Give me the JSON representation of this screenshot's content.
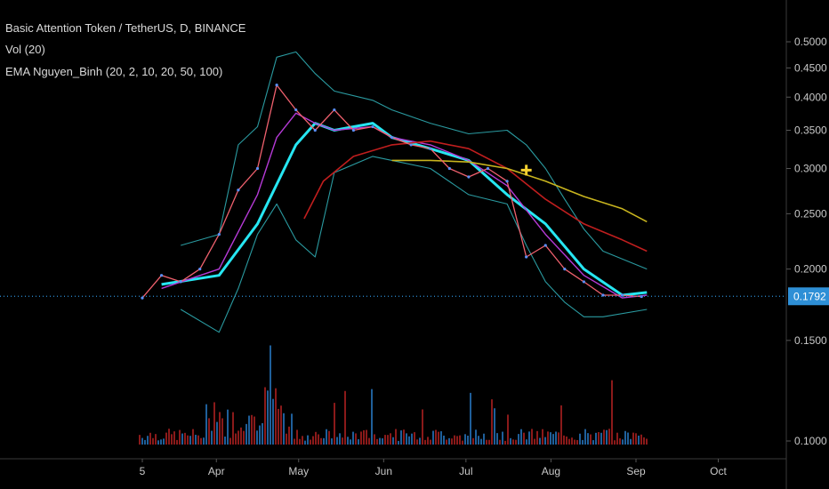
{
  "legend": {
    "title": "Basic Attention Token / TetherUS, D, BINANCE",
    "vol": "Vol (20)",
    "ema": "EMA Nguyen_Binh (20, 2, 10, 20, 50, 100)"
  },
  "colors": {
    "background": "#000000",
    "up_candle": "#5b8ff9",
    "down_candle": "#f0616e",
    "vol_up": "#1f5f9a",
    "vol_down": "#8b1a1a",
    "ema_fast": "#26e6f2",
    "ema_mid": "#b53ad6",
    "ema_slow": "#c01e1e",
    "ema_long": "#c8b41e",
    "bollinger": "#2a9aa0",
    "last_price_line": "#2e8fd6",
    "marker": "#f5d130"
  },
  "chart_data": {
    "type": "line",
    "y_scale": "log",
    "ylim": [
      0.095,
      0.52
    ],
    "yticks": [
      "0.1000",
      "0.1500",
      "0.2000",
      "0.2500",
      "0.3000",
      "0.3500",
      "0.4000",
      "0.4500",
      "0.5000"
    ],
    "x_labels": [
      "5",
      "Apr",
      "May",
      "Jun",
      "Jul",
      "Aug",
      "Sep",
      "Oct"
    ],
    "last_price": "0.1792",
    "series": [
      {
        "key": "price",
        "x": [
          "Mar 5",
          "Mar 12",
          "Mar 19",
          "Mar 26",
          "Apr 2",
          "Apr 9",
          "Apr 16",
          "Apr 23",
          "Apr 30",
          "May 7",
          "May 14",
          "May 21",
          "May 28",
          "Jun 4",
          "Jun 11",
          "Jun 18",
          "Jun 25",
          "Jul 2",
          "Jul 9",
          "Jul 16",
          "Jul 23",
          "Jul 30",
          "Aug 6",
          "Aug 13",
          "Aug 20",
          "Aug 27",
          "Sep 3"
        ],
        "values": [
          0.178,
          0.195,
          0.19,
          0.2,
          0.23,
          0.275,
          0.3,
          0.42,
          0.38,
          0.35,
          0.38,
          0.35,
          0.355,
          0.34,
          0.33,
          0.325,
          0.3,
          0.29,
          0.3,
          0.285,
          0.21,
          0.22,
          0.2,
          0.19,
          0.18,
          0.18,
          0.179
        ]
      },
      {
        "key": "ema_fast",
        "x": [
          "Mar 12",
          "Apr 2",
          "Apr 16",
          "Apr 30",
          "May 7",
          "May 14",
          "May 28",
          "Jun 4",
          "Jun 18",
          "Jul 2",
          "Jul 16",
          "Jul 30",
          "Aug 13",
          "Aug 27",
          "Sep 5"
        ],
        "values": [
          0.188,
          0.195,
          0.24,
          0.33,
          0.36,
          0.35,
          0.36,
          0.34,
          0.325,
          0.31,
          0.27,
          0.24,
          0.2,
          0.18,
          0.182
        ]
      },
      {
        "key": "ema_mid",
        "x": [
          "Mar 12",
          "Apr 2",
          "Apr 16",
          "Apr 23",
          "Apr 30",
          "May 7",
          "May 14",
          "May 28",
          "Jun 4",
          "Jun 18",
          "Jul 2",
          "Jul 16",
          "Jul 30",
          "Aug 13",
          "Aug 27",
          "Sep 5"
        ],
        "values": [
          0.185,
          0.2,
          0.27,
          0.34,
          0.375,
          0.36,
          0.35,
          0.355,
          0.34,
          0.33,
          0.31,
          0.28,
          0.23,
          0.195,
          0.178,
          0.18
        ]
      },
      {
        "key": "ema_slow",
        "x": [
          "May 3",
          "May 10",
          "May 21",
          "Jun 4",
          "Jun 18",
          "Jul 2",
          "Jul 16",
          "Jul 30",
          "Aug 13",
          "Aug 27",
          "Sep 5"
        ],
        "values": [
          0.245,
          0.285,
          0.315,
          0.33,
          0.335,
          0.325,
          0.3,
          0.265,
          0.24,
          0.225,
          0.215
        ]
      },
      {
        "key": "ema_long",
        "x": [
          "Jun 4",
          "Jun 18",
          "Jul 2",
          "Jul 16",
          "Jul 30",
          "Aug 13",
          "Aug 27",
          "Sep 5"
        ],
        "values": [
          0.31,
          0.31,
          0.308,
          0.3,
          0.285,
          0.268,
          0.255,
          0.242
        ]
      },
      {
        "key": "bb_upper",
        "x": [
          "Mar 19",
          "Apr 2",
          "Apr 9",
          "Apr 16",
          "Apr 23",
          "Apr 30",
          "May 7",
          "May 14",
          "May 28",
          "Jun 4",
          "Jun 18",
          "Jul 2",
          "Jul 16",
          "Jul 23",
          "Jul 30",
          "Aug 6",
          "Aug 13",
          "Aug 20",
          "Sep 5"
        ],
        "values": [
          0.22,
          0.23,
          0.33,
          0.355,
          0.47,
          0.48,
          0.44,
          0.41,
          0.395,
          0.38,
          0.36,
          0.345,
          0.35,
          0.33,
          0.3,
          0.265,
          0.235,
          0.215,
          0.2
        ]
      },
      {
        "key": "bb_lower",
        "x": [
          "Mar 19",
          "Apr 2",
          "Apr 9",
          "Apr 16",
          "Apr 23",
          "Apr 30",
          "May 7",
          "May 14",
          "May 28",
          "Jun 4",
          "Jun 18",
          "Jul 2",
          "Jul 16",
          "Jul 23",
          "Jul 30",
          "Aug 6",
          "Aug 13",
          "Aug 20",
          "Sep 5"
        ],
        "values": [
          0.17,
          0.155,
          0.185,
          0.23,
          0.26,
          0.225,
          0.21,
          0.295,
          0.315,
          0.31,
          0.3,
          0.27,
          0.26,
          0.22,
          0.19,
          0.175,
          0.165,
          0.165,
          0.17
        ]
      }
    ],
    "marker": {
      "x": "Jul 23",
      "y": 0.298
    },
    "grid": false,
    "legend_position": "top-left"
  }
}
